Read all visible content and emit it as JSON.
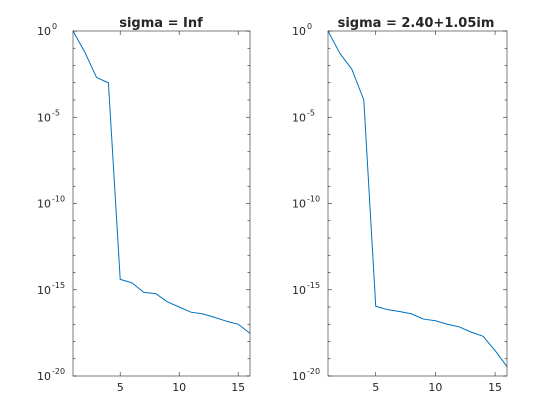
{
  "chart_data": [
    {
      "type": "line",
      "title": "sigma = Inf",
      "xlabel": "",
      "ylabel": "",
      "xlim": [
        1,
        16
      ],
      "ylim": [
        1e-20,
        1
      ],
      "yscale": "log",
      "grid": false,
      "x_ticks": [
        5,
        10,
        15
      ],
      "x_tick_labels": [
        "5",
        "10",
        "15"
      ],
      "y_ticks": [
        {
          "base": "10",
          "exp": "0"
        },
        {
          "base": "10",
          "exp": "-5"
        },
        {
          "base": "10",
          "exp": "-10"
        },
        {
          "base": "10",
          "exp": "-15"
        },
        {
          "base": "10",
          "exp": "-20"
        }
      ],
      "series": [
        {
          "color": "#0072bd",
          "x": [
            1,
            2,
            3,
            4,
            5,
            6,
            7,
            8,
            9,
            10,
            11,
            12,
            13,
            14,
            15,
            16
          ],
          "y": [
            1,
            0.06,
            0.002,
            0.001,
            4e-15,
            2.5e-15,
            7e-16,
            6e-16,
            2e-16,
            1e-16,
            5e-17,
            4e-17,
            2.5e-17,
            1.5e-17,
            1e-17,
            3e-18
          ]
        }
      ]
    },
    {
      "type": "line",
      "title": "sigma = 2.40+1.05im",
      "xlabel": "",
      "ylabel": "",
      "xlim": [
        1,
        16
      ],
      "ylim": [
        1e-20,
        1
      ],
      "yscale": "log",
      "grid": false,
      "x_ticks": [
        5,
        10,
        15
      ],
      "x_tick_labels": [
        "5",
        "10",
        "15"
      ],
      "y_ticks": [
        {
          "base": "10",
          "exp": "0"
        },
        {
          "base": "10",
          "exp": "-5"
        },
        {
          "base": "10",
          "exp": "-10"
        },
        {
          "base": "10",
          "exp": "-15"
        },
        {
          "base": "10",
          "exp": "-20"
        }
      ],
      "series": [
        {
          "color": "#0072bd",
          "x": [
            1,
            2,
            3,
            4,
            5,
            6,
            7,
            8,
            9,
            10,
            11,
            12,
            13,
            14,
            15,
            16
          ],
          "y": [
            1,
            0.05,
            0.006,
            0.0001,
            1.1e-16,
            7e-17,
            5.5e-17,
            4e-17,
            2e-17,
            1.6e-17,
            1e-17,
            7e-18,
            3.5e-18,
            2e-18,
            3e-19,
            3.5e-20
          ]
        }
      ]
    }
  ]
}
